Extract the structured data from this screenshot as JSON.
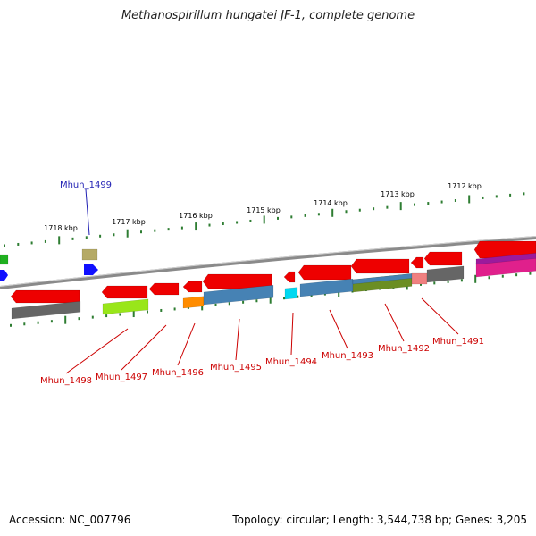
{
  "title": "Methanospirillum hungatei JF-1, complete genome",
  "accession": "Accession: NC_007796",
  "topology": "Topology: circular; Length: 3,544,738 bp; Genes: 3,205",
  "colors": {
    "backbone": "#8a8a8a",
    "tick": "#2e7d32",
    "label_red": "#cc0000",
    "label_blue": "#1f1fb3",
    "gene_red": "#ee0000",
    "gene_gray": "#666666",
    "gene_lime": "#99e61a",
    "gene_orange": "#ff8c00",
    "gene_steel": "#4682b4",
    "gene_olive": "#6b8e23",
    "gene_pink": "#f08080",
    "gene_magenta": "#e0208c",
    "gene_cyan": "#00d8f0",
    "gene_khaki": "#b5aa66",
    "gene_blue": "#1010ff",
    "gene_green": "#20b020"
  },
  "kbp_labels": [
    "1718 kbp",
    "1717 kbp",
    "1716 kbp",
    "1715 kbp",
    "1714 kbp",
    "1713 kbp",
    "1712 kbp"
  ],
  "genes": [
    {
      "name": "Mhun_1499",
      "color": "label_blue"
    },
    {
      "name": "Mhun_1498",
      "color": "label_red"
    },
    {
      "name": "Mhun_1497",
      "color": "label_red"
    },
    {
      "name": "Mhun_1496",
      "color": "label_red"
    },
    {
      "name": "Mhun_1495",
      "color": "label_red"
    },
    {
      "name": "Mhun_1494",
      "color": "label_red"
    },
    {
      "name": "Mhun_1493",
      "color": "label_red"
    },
    {
      "name": "Mhun_1492",
      "color": "label_red"
    },
    {
      "name": "Mhun_1491",
      "color": "label_red"
    }
  ]
}
